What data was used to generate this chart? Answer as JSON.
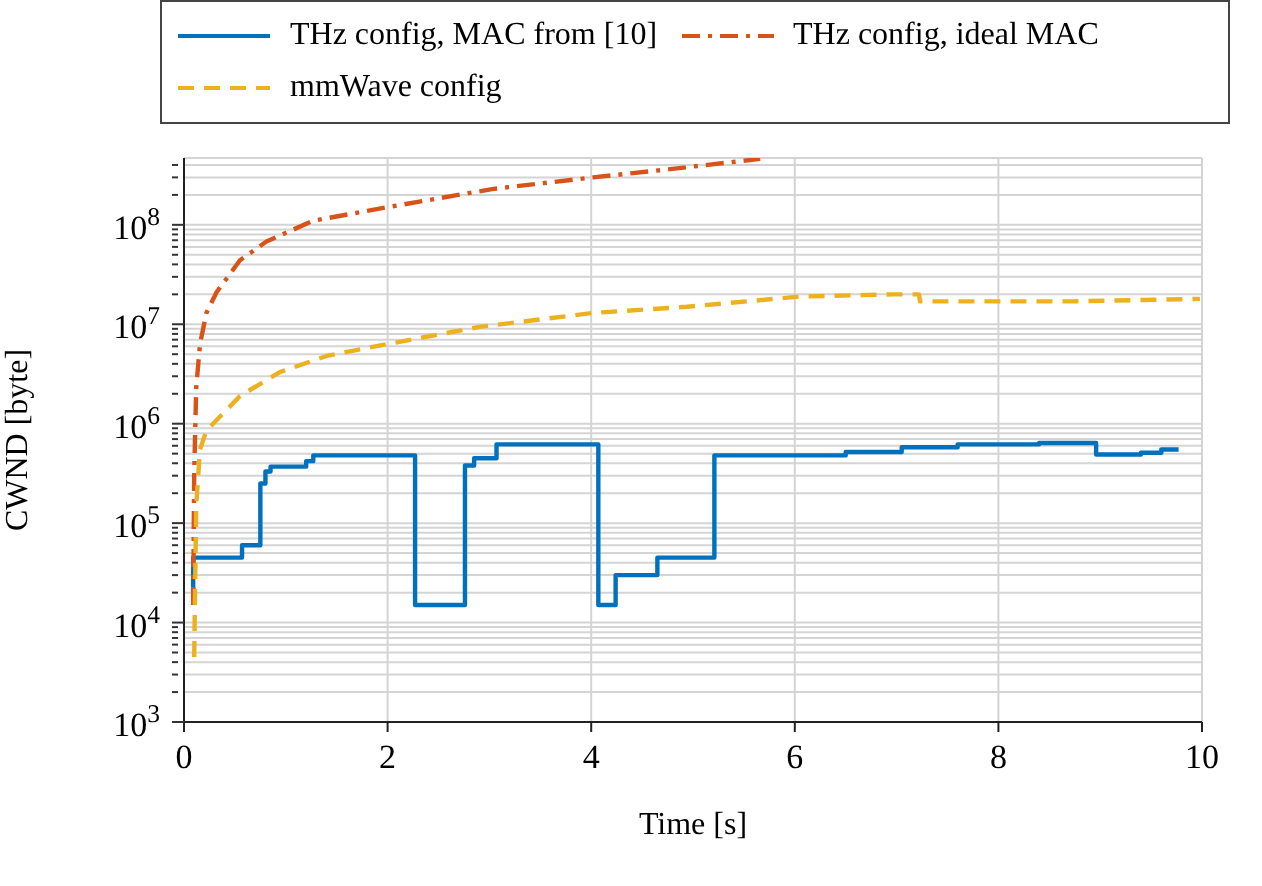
{
  "chart_data": {
    "type": "line",
    "xlabel": "Time [s]",
    "ylabel": "CWND [byte]",
    "log": "y",
    "grid": true,
    "legend": "top",
    "xlim": [
      0,
      10
    ],
    "xticks": [
      0,
      2,
      4,
      6,
      8,
      10
    ],
    "ylim": [
      1000,
      470000000
    ],
    "yticks": [
      {
        "value": 1000,
        "label": "10$^{3}$"
      },
      {
        "value": 2000,
        "label": null
      },
      {
        "value": 3000,
        "label": null
      },
      {
        "value": 4000,
        "label": null
      },
      {
        "value": 5000,
        "label": null
      },
      {
        "value": 6000,
        "label": null
      },
      {
        "value": 7000,
        "label": null
      },
      {
        "value": 8000,
        "label": null
      },
      {
        "value": 9000,
        "label": null
      },
      {
        "value": 10000,
        "label": "10$^{4}$"
      },
      {
        "value": 20000,
        "label": null
      },
      {
        "value": 30000,
        "label": null
      },
      {
        "value": 40000,
        "label": null
      },
      {
        "value": 50000,
        "label": null
      },
      {
        "value": 60000,
        "label": null
      },
      {
        "value": 70000,
        "label": null
      },
      {
        "value": 80000,
        "label": null
      },
      {
        "value": 90000,
        "label": null
      },
      {
        "value": 100000,
        "label": "10$^{5}$"
      },
      {
        "value": 200000,
        "label": null
      },
      {
        "value": 300000,
        "label": null
      },
      {
        "value": 400000,
        "label": null
      },
      {
        "value": 500000,
        "label": null
      },
      {
        "value": 600000,
        "label": null
      },
      {
        "value": 700000,
        "label": null
      },
      {
        "value": 800000,
        "label": null
      },
      {
        "value": 900000,
        "label": null
      },
      {
        "value": 1000000,
        "label": "10$^{6}$"
      },
      {
        "value": 2000000,
        "label": null
      },
      {
        "value": 3000000,
        "label": null
      },
      {
        "value": 4000000,
        "label": null
      },
      {
        "value": 5000000,
        "label": null
      },
      {
        "value": 6000000,
        "label": null
      },
      {
        "value": 7000000,
        "label": null
      },
      {
        "value": 8000000,
        "label": null
      },
      {
        "value": 9000000,
        "label": null
      },
      {
        "value": 10000000,
        "label": "10$^{7}$"
      },
      {
        "value": 20000000,
        "label": null
      },
      {
        "value": 30000000,
        "label": null
      },
      {
        "value": 40000000,
        "label": null
      },
      {
        "value": 50000000,
        "label": null
      },
      {
        "value": 60000000,
        "label": null
      },
      {
        "value": 70000000,
        "label": null
      },
      {
        "value": 80000000,
        "label": null
      },
      {
        "value": 90000000,
        "label": null
      },
      {
        "value": 100000000,
        "label": "10$^{8}$"
      },
      {
        "value": 200000000,
        "label": null
      },
      {
        "value": 300000000,
        "label": null
      },
      {
        "value": 400000000,
        "label": null
      }
    ],
    "series": [
      {
        "name": "THz config, MAC from [10]",
        "type": "step",
        "color": "#0072bd",
        "line_style": "solid",
        "x": [
          0.09,
          0.09,
          0.57,
          0.75,
          0.8,
          0.85,
          1.2,
          1.27,
          2.27,
          2.76,
          2.85,
          3.07,
          4.07,
          4.24,
          4.65,
          5.21,
          6.5,
          7.05,
          7.6,
          8.4,
          8.96,
          9.4,
          9.6,
          9.77
        ],
        "values": [
          20000,
          45000,
          60000,
          250000,
          330000,
          370000,
          420000,
          480000,
          15000,
          380000,
          450000,
          620000,
          15000,
          30000,
          45000,
          480000,
          520000,
          580000,
          620000,
          640000,
          490000,
          510000,
          550000,
          550000
        ]
      },
      {
        "name": "THz config, ideal MAC",
        "color": "#d95319",
        "line_style": "dashdot",
        "x": [
          0.09,
          0.1,
          0.12,
          0.157,
          0.22,
          0.32,
          0.55,
          0.81,
          1.27,
          1.99,
          3.04,
          4.02,
          4.74,
          5.66
        ],
        "values": [
          15000,
          310000,
          2300000,
          6300000,
          13000000,
          21000000,
          44000000,
          68000000,
          110000000,
          150000000,
          230000000,
          300000000,
          360000000,
          460000000
        ]
      },
      {
        "name": "mmWave config",
        "color": "#edb120",
        "line_style": "dashed",
        "x": [
          0.1,
          0.12,
          0.157,
          0.22,
          0.55,
          0.94,
          1.4,
          1.99,
          2.9,
          4.02,
          4.94,
          6.05,
          6.97,
          7.22,
          7.23,
          8.74,
          9.98
        ],
        "values": [
          4500,
          150000,
          550000,
          850000,
          1900000,
          3300000,
          4800000,
          6300000,
          9400000,
          13000000,
          15000000,
          19000000,
          20000000,
          20000000,
          17000000,
          17000000,
          18000000
        ]
      }
    ]
  }
}
